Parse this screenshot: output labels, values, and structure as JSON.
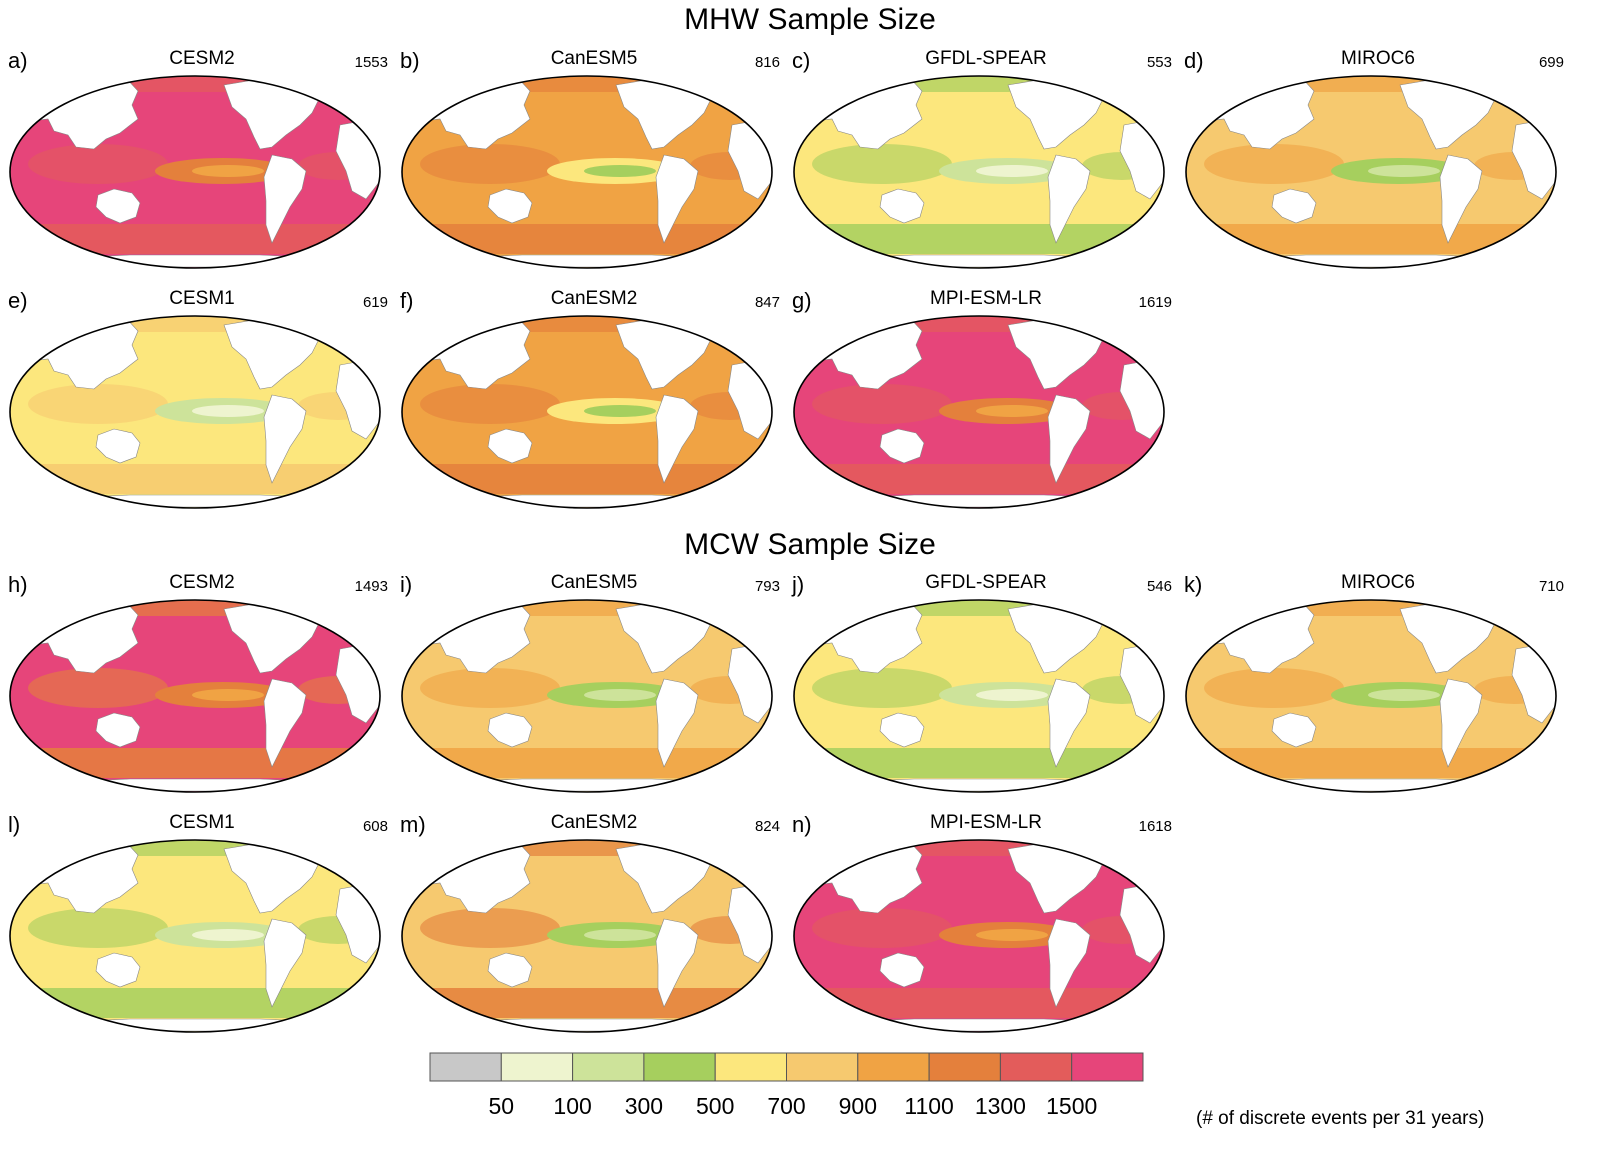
{
  "chart_data": {
    "type": "heatmap",
    "description_units": "# of discrete events per 31 years",
    "sections": [
      {
        "title": "MHW Sample Size",
        "panels": [
          {
            "letter": "a)",
            "model": "CESM2",
            "count": "1553",
            "level": 9,
            "tint": 8
          },
          {
            "letter": "b)",
            "model": "CanESM5",
            "count": "816",
            "level": 6,
            "tint": 7
          },
          {
            "letter": "c)",
            "model": "GFDL-SPEAR",
            "count": "553",
            "level": 4,
            "tint": 3
          },
          {
            "letter": "d)",
            "model": "MIROC6",
            "count": "699",
            "level": 5,
            "tint": 6
          },
          {
            "letter": "e)",
            "model": "CESM1",
            "count": "619",
            "level": 4,
            "tint": 5
          },
          {
            "letter": "f)",
            "model": "CanESM2",
            "count": "847",
            "level": 6,
            "tint": 7
          },
          {
            "letter": "g)",
            "model": "MPI-ESM-LR",
            "count": "1619",
            "level": 9,
            "tint": 8
          }
        ]
      },
      {
        "title": "MCW Sample Size",
        "panels": [
          {
            "letter": "h)",
            "model": "CESM2",
            "count": "1493",
            "level": 9,
            "tint": 7
          },
          {
            "letter": "i)",
            "model": "CanESM5",
            "count": "793",
            "level": 5,
            "tint": 6
          },
          {
            "letter": "j)",
            "model": "GFDL-SPEAR",
            "count": "546",
            "level": 4,
            "tint": 3
          },
          {
            "letter": "k)",
            "model": "MIROC6",
            "count": "710",
            "level": 5,
            "tint": 6
          },
          {
            "letter": "l)",
            "model": "CESM1",
            "count": "608",
            "level": 4,
            "tint": 3
          },
          {
            "letter": "m)",
            "model": "CanESM2",
            "count": "824",
            "level": 5,
            "tint": 7
          },
          {
            "letter": "n)",
            "model": "MPI-ESM-LR",
            "count": "1618",
            "level": 9,
            "tint": 8
          }
        ]
      }
    ],
    "colorbar": {
      "levels": [
        "50",
        "100",
        "300",
        "500",
        "700",
        "900",
        "1100",
        "1300",
        "1500"
      ],
      "colors": [
        "#c8c8c8",
        "#eef4cf",
        "#cde39a",
        "#a6cf5e",
        "#fce77d",
        "#f6c96f",
        "#f0a344",
        "#e4803c",
        "#e35c5b",
        "#e6457a"
      ],
      "unit_label": "(# of discrete events per 31 years)"
    }
  }
}
